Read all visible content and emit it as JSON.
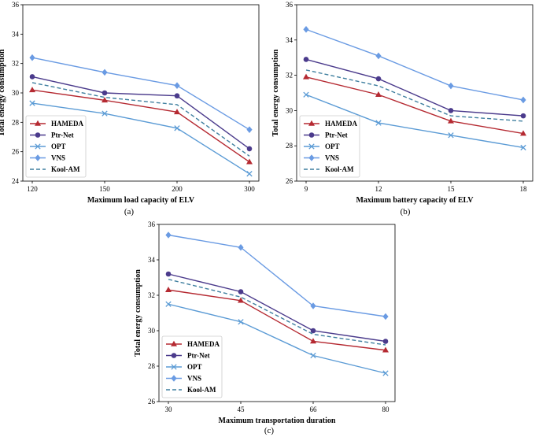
{
  "series_styles": [
    {
      "name": "HAMEDA",
      "color": "#b52a32",
      "marker": "triangle",
      "dashed": false
    },
    {
      "name": "Ptr-Net",
      "color": "#4b3b8c",
      "marker": "circle",
      "dashed": false
    },
    {
      "name": "OPT",
      "color": "#5b9bd5",
      "marker": "x",
      "dashed": false
    },
    {
      "name": "VNS",
      "color": "#6a9be3",
      "marker": "diamond",
      "dashed": false
    },
    {
      "name": "Kool-AM",
      "color": "#3f7f9f",
      "marker": "none",
      "dashed": true
    }
  ],
  "chart_data": [
    {
      "type": "line",
      "caption": "(a)",
      "xlabel": "Maximum load capacity of ELV",
      "ylabel": "Total energy consumption",
      "categories": [
        "120",
        "150",
        "200",
        "300"
      ],
      "ylim": [
        24,
        36
      ],
      "yticks": [
        "24",
        "26",
        "28",
        "30",
        "32",
        "34",
        "36"
      ],
      "legend": "lower-left",
      "series": [
        {
          "name": "HAMEDA",
          "values": [
            30.2,
            29.5,
            28.7,
            25.3
          ]
        },
        {
          "name": "Ptr-Net",
          "values": [
            31.1,
            30.0,
            29.8,
            26.2
          ]
        },
        {
          "name": "OPT",
          "values": [
            29.3,
            28.6,
            27.6,
            24.5
          ]
        },
        {
          "name": "VNS",
          "values": [
            32.4,
            31.4,
            30.5,
            27.5
          ]
        },
        {
          "name": "Kool-AM",
          "values": [
            30.7,
            29.7,
            29.2,
            25.7
          ]
        }
      ]
    },
    {
      "type": "line",
      "caption": "(b)",
      "xlabel": "Maximum battery capacity of ELV",
      "ylabel": "Total energy consumption",
      "categories": [
        "9",
        "12",
        "15",
        "18"
      ],
      "ylim": [
        26,
        36
      ],
      "yticks": [
        "26",
        "28",
        "30",
        "32",
        "34",
        "36"
      ],
      "legend": "lower-left",
      "series": [
        {
          "name": "HAMEDA",
          "values": [
            31.9,
            30.9,
            29.4,
            28.7
          ]
        },
        {
          "name": "Ptr-Net",
          "values": [
            32.9,
            31.8,
            30.0,
            29.7
          ]
        },
        {
          "name": "OPT",
          "values": [
            30.9,
            29.3,
            28.6,
            27.9
          ]
        },
        {
          "name": "VNS",
          "values": [
            34.6,
            33.1,
            31.4,
            30.6
          ]
        },
        {
          "name": "Kool-AM",
          "values": [
            32.3,
            31.4,
            29.7,
            29.4
          ]
        }
      ]
    },
    {
      "type": "line",
      "caption": "(c)",
      "xlabel": "Maximum transportation duration",
      "ylabel": "Total energy consumption",
      "categories": [
        "30",
        "45",
        "66",
        "80"
      ],
      "ylim": [
        26,
        36
      ],
      "yticks": [
        "26",
        "28",
        "30",
        "32",
        "34",
        "36"
      ],
      "legend": "lower-left",
      "series": [
        {
          "name": "HAMEDA",
          "values": [
            32.3,
            31.7,
            29.4,
            28.9
          ]
        },
        {
          "name": "Ptr-Net",
          "values": [
            33.2,
            32.2,
            30.0,
            29.4
          ]
        },
        {
          "name": "OPT",
          "values": [
            31.5,
            30.5,
            28.6,
            27.6
          ]
        },
        {
          "name": "VNS",
          "values": [
            35.4,
            34.7,
            31.4,
            30.8
          ]
        },
        {
          "name": "Kool-AM",
          "values": [
            32.9,
            31.9,
            29.8,
            29.2
          ]
        }
      ]
    }
  ]
}
